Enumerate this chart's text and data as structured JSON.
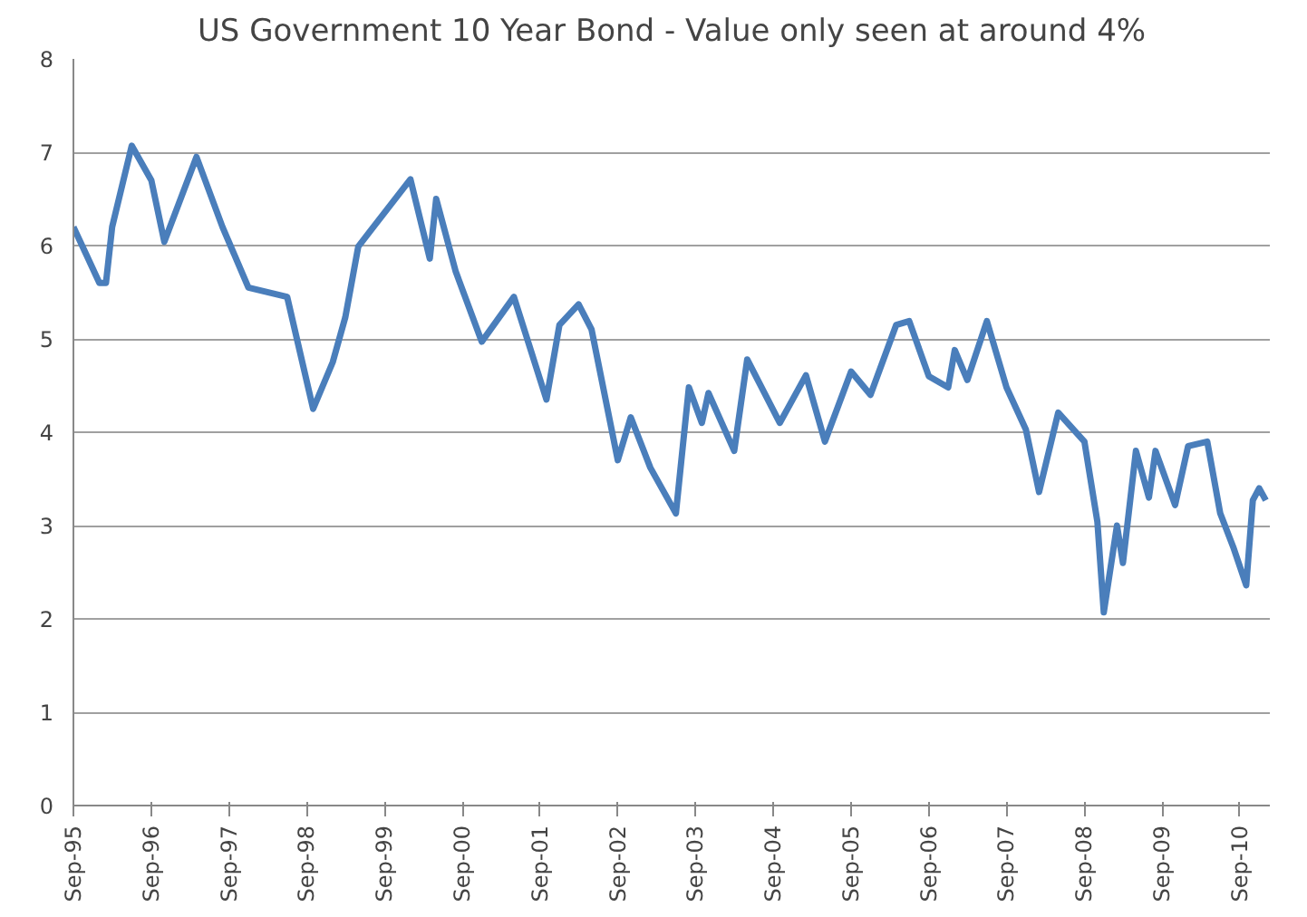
{
  "chart_data": {
    "type": "line",
    "title": "US Government 10 Year Bond - Value only seen at around 4%",
    "x": [
      "1995-09",
      "1995-11",
      "1996-01",
      "1996-02",
      "1996-03",
      "1996-06",
      "1996-09",
      "1996-11",
      "1997-04",
      "1997-08",
      "1997-12",
      "1998-06",
      "1998-10",
      "1999-01",
      "1999-03",
      "1999-05",
      "2000-01",
      "2000-04",
      "2000-05",
      "2000-08",
      "2000-12",
      "2001-05",
      "2001-10",
      "2001-12",
      "2002-03",
      "2002-05",
      "2002-09",
      "2002-11",
      "2003-02",
      "2003-06",
      "2003-08",
      "2003-10",
      "2003-11",
      "2004-03",
      "2004-05",
      "2004-10",
      "2005-02",
      "2005-05",
      "2005-09",
      "2005-12",
      "2006-04",
      "2006-06",
      "2006-09",
      "2006-12",
      "2007-01",
      "2007-03",
      "2007-06",
      "2007-09",
      "2007-12",
      "2008-02",
      "2008-05",
      "2008-09",
      "2008-11",
      "2008-12",
      "2009-02",
      "2009-03",
      "2009-05",
      "2009-07",
      "2009-08",
      "2009-11",
      "2010-01",
      "2010-04",
      "2010-06",
      "2010-08",
      "2010-10",
      "2010-11",
      "2010-12",
      "2011-01"
    ],
    "series": [
      {
        "color": "#4a7ebb",
        "values": [
          6.2,
          5.9,
          5.6,
          5.6,
          6.2,
          7.07,
          6.7,
          6.04,
          6.95,
          6.2,
          5.55,
          5.45,
          4.25,
          4.75,
          5.23,
          5.99,
          6.71,
          5.86,
          6.5,
          5.72,
          4.97,
          5.45,
          4.35,
          5.15,
          5.37,
          5.1,
          3.7,
          4.16,
          3.62,
          3.13,
          4.48,
          4.1,
          4.42,
          3.8,
          4.78,
          4.1,
          4.61,
          3.9,
          4.65,
          4.4,
          5.15,
          5.19,
          4.6,
          4.48,
          4.88,
          4.56,
          5.19,
          4.48,
          4.03,
          3.36,
          4.21,
          3.9,
          3.04,
          2.07,
          3.0,
          2.6,
          3.8,
          3.3,
          3.8,
          3.22,
          3.85,
          3.9,
          3.13,
          2.77,
          2.36,
          3.27,
          3.4,
          3.27
        ]
      }
    ],
    "xlim": [
      "1995-09",
      "2011-01-20"
    ],
    "xticks": [
      {
        "value": "1995-09",
        "label": "Sep-95"
      },
      {
        "value": "1996-09",
        "label": "Sep-96"
      },
      {
        "value": "1997-09",
        "label": "Sep-97"
      },
      {
        "value": "1998-09",
        "label": "Sep-98"
      },
      {
        "value": "1999-09",
        "label": "Sep-99"
      },
      {
        "value": "2000-09",
        "label": "Sep-00"
      },
      {
        "value": "2001-09",
        "label": "Sep-01"
      },
      {
        "value": "2002-09",
        "label": "Sep-02"
      },
      {
        "value": "2003-09",
        "label": "Sep-03"
      },
      {
        "value": "2004-09",
        "label": "Sep-04"
      },
      {
        "value": "2005-09",
        "label": "Sep-05"
      },
      {
        "value": "2006-09",
        "label": "Sep-06"
      },
      {
        "value": "2007-09",
        "label": "Sep-07"
      },
      {
        "value": "2008-09",
        "label": "Sep-08"
      },
      {
        "value": "2009-09",
        "label": "Sep-09"
      },
      {
        "value": "2010-09",
        "label": "Sep-10"
      }
    ],
    "ylim": [
      0,
      8
    ],
    "yticks": [
      0,
      1,
      2,
      3,
      4,
      5,
      6,
      7,
      8
    ],
    "grid": "y",
    "marker": "none",
    "line_style": "solid"
  }
}
